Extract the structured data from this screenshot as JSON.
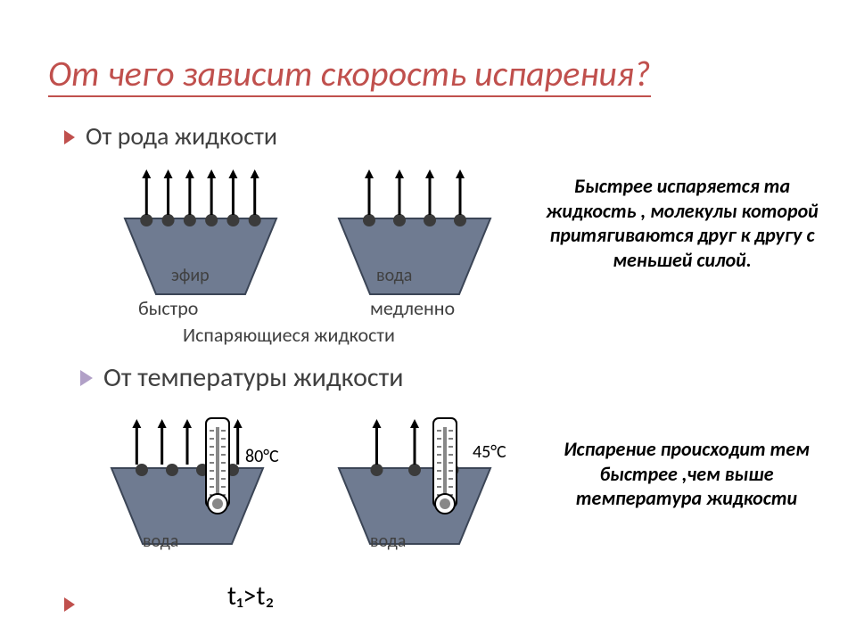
{
  "title": {
    "text": "От чего зависит скорость испарения?",
    "color": "#C0504D",
    "underline_color": "#C0504D",
    "fontsize": 40
  },
  "section1": {
    "bullet": {
      "text": "От рода жидкости",
      "color": "#404040",
      "arrow_color": "#C0504D",
      "fontsize": 28
    },
    "vessel_left": {
      "label": "эфир",
      "arrows": 6,
      "molecules": 6,
      "fill": "#6F7B91",
      "border": "#3B4556"
    },
    "vessel_right": {
      "label": "вода",
      "arrows": 4,
      "molecules": 4,
      "fill": "#6F7B91",
      "border": "#3B4556"
    },
    "caption_left": "быстро",
    "caption_right": "медленно",
    "caption_bottom": "Испаряющиеся жидкости",
    "side_text": "Быстрее испаряется та жидкость , молекулы которой притягиваются друг к другу с меньшей силой.",
    "side_color": "#000000"
  },
  "section2": {
    "bullet": {
      "text": "От температуры жидкости",
      "color": "#404040",
      "arrow_color": "#B1A0C7",
      "fontsize": 30
    },
    "vessel_left": {
      "label": "вода",
      "temp": "80°C",
      "arrows": 5,
      "molecules": 4,
      "fill": "#6F7B91",
      "border": "#3B4556"
    },
    "vessel_right": {
      "label": "вода",
      "temp": "45°C",
      "arrows": 3,
      "molecules": 3,
      "fill": "#6F7B91",
      "border": "#3B4556"
    },
    "side_text": "Испарение происходит тем быстрее ,чем выше температура жидкости",
    "side_color": "#000000",
    "formula": "t₁>t₂"
  },
  "geometry": {
    "vessel": {
      "top_w": 170,
      "bot_w": 100,
      "h": 85,
      "arrow_len": 55,
      "mol_r": 7
    },
    "vessel2": {
      "top_w": 170,
      "bot_w": 100,
      "h": 85,
      "arrow_len": 55,
      "mol_r": 7
    }
  },
  "colors": {
    "text": "#404040",
    "black": "#000000"
  }
}
